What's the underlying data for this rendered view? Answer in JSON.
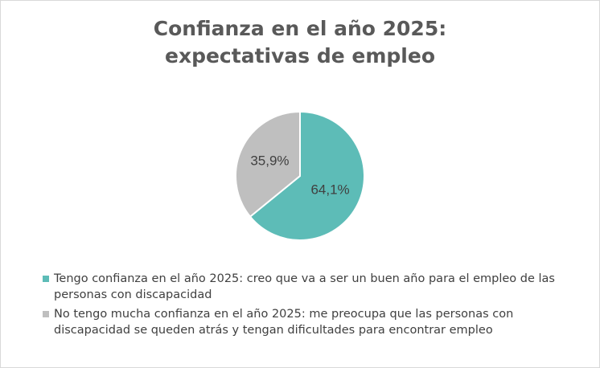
{
  "chart_data": {
    "type": "pie",
    "title_lines": [
      "Confianza en el año 2025:",
      "expectativas de empleo"
    ],
    "series": [
      {
        "label": "Tengo confianza en el año 2025: creo que va a ser un buen año para el empleo de las personas con discapacidad",
        "value": 64.1,
        "display": "64,1%",
        "color": "#5dbcb7"
      },
      {
        "label": "No tengo mucha confianza en el año 2025: me preocupa que las personas con discapacidad se queden atrás y tengan dificultades para encontrar empleo",
        "value": 35.9,
        "display": "35,9%",
        "color": "#bfbfbf"
      }
    ],
    "legend_position": "bottom",
    "data_labels": "inside"
  }
}
